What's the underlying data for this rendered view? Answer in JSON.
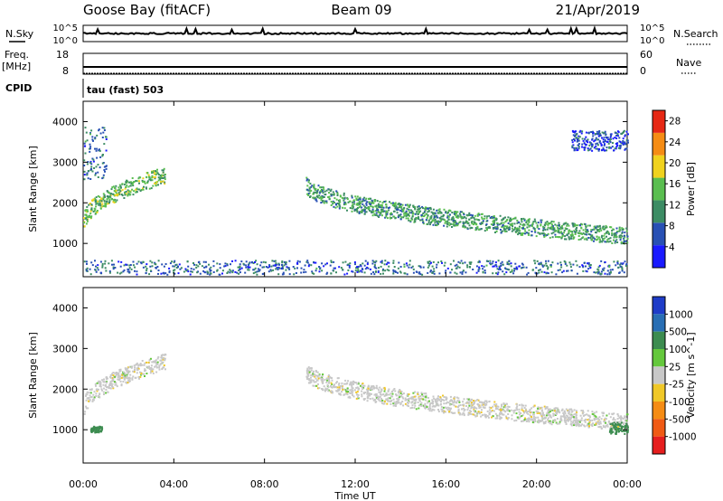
{
  "header": {
    "station": "Goose Bay (fitACF)",
    "beam": "Beam 09",
    "date": "21/Apr/2019"
  },
  "strips": {
    "nsky_label": "N.Sky",
    "nsearch_label": "N.Search",
    "noise_ticks": [
      "10^5",
      "10^0"
    ],
    "freq_label": "Freq.",
    "freq_unit": "[MHz]",
    "freq_ticks": [
      "18",
      "8"
    ],
    "nave_label": "Nave",
    "nave_ticks": [
      "60",
      "0"
    ],
    "cpid_label": "CPID",
    "cpid_value": "tau (fast) 503"
  },
  "chart_data": [
    {
      "type": "heatmap",
      "title": "",
      "xlabel": "Time UT",
      "ylabel": "Slant Range [km]",
      "xlim": [
        "00:00",
        "24:00"
      ],
      "x_ticks": [
        "00:00",
        "04:00",
        "08:00",
        "12:00",
        "16:00",
        "20:00",
        "00:00"
      ],
      "ylim": [
        180,
        4500
      ],
      "y_ticks": [
        "1000",
        "2000",
        "3000",
        "4000"
      ],
      "colorbar": {
        "label": "Power [dB]",
        "ticks": [
          "4",
          "8",
          "12",
          "16",
          "20",
          "24",
          "28"
        ],
        "range": [
          0,
          30
        ],
        "colors": [
          "#1a1aff",
          "#2850b4",
          "#3c8c64",
          "#5abe50",
          "#f0d21e",
          "#f58c14",
          "#e62814"
        ]
      },
      "features": [
        {
          "name": "early arc",
          "t_start": 0.0,
          "t_end": 3.6,
          "range_start": 1500,
          "range_end": 2700,
          "dominant_power": 14
        },
        {
          "name": "morning patches",
          "t_start": 0.0,
          "t_end": 1.0,
          "range_start": 2600,
          "range_end": 3900,
          "dominant_power": 8
        },
        {
          "name": "midday arc",
          "t_start": 9.8,
          "t_end": 24.0,
          "range_start": 2500,
          "range_end": 1200,
          "dominant_power": 12
        },
        {
          "name": "late high-range band",
          "t_start": 21.5,
          "t_end": 24.0,
          "range_start": 3300,
          "range_end": 3800,
          "dominant_power": 6
        },
        {
          "name": "near-range ground scatter",
          "t_start": 0.0,
          "t_end": 24.0,
          "range_start": 250,
          "range_end": 600,
          "dominant_power": 8
        }
      ]
    },
    {
      "type": "heatmap",
      "title": "",
      "xlabel": "Time UT",
      "ylabel": "Slant Range [km]",
      "xlim": [
        "00:00",
        "24:00"
      ],
      "x_ticks": [
        "00:00",
        "04:00",
        "08:00",
        "12:00",
        "16:00",
        "20:00",
        "00:00"
      ],
      "ylim": [
        180,
        4500
      ],
      "y_ticks": [
        "1000",
        "2000",
        "3000",
        "4000"
      ],
      "colorbar": {
        "label": "Velocity [m s^-1]",
        "ticks": [
          "1000",
          "500",
          "100",
          "25",
          "-25",
          "-100",
          "-500",
          "-1000"
        ],
        "colors": [
          "#1e3cc8",
          "#286eb4",
          "#3c8c50",
          "#64c83c",
          "#c8c8c8",
          "#f0c828",
          "#f58c14",
          "#f05a14",
          "#e61e1e"
        ]
      },
      "features": [
        {
          "name": "early arc",
          "t_start": 0.0,
          "t_end": 3.6,
          "range_start": 1500,
          "range_end": 2700,
          "dominant_velocity": 0
        },
        {
          "name": "midday arc",
          "t_start": 9.8,
          "t_end": 24.0,
          "range_start": 2500,
          "range_end": 1200,
          "dominant_velocity": 0
        },
        {
          "name": "early near patch",
          "t_start": 0.3,
          "t_end": 0.8,
          "range_start": 950,
          "range_end": 1100,
          "dominant_velocity": 150
        },
        {
          "name": "late near patch",
          "t_start": 23.2,
          "t_end": 24.0,
          "range_start": 900,
          "range_end": 1200,
          "dominant_velocity": 150
        }
      ]
    }
  ]
}
